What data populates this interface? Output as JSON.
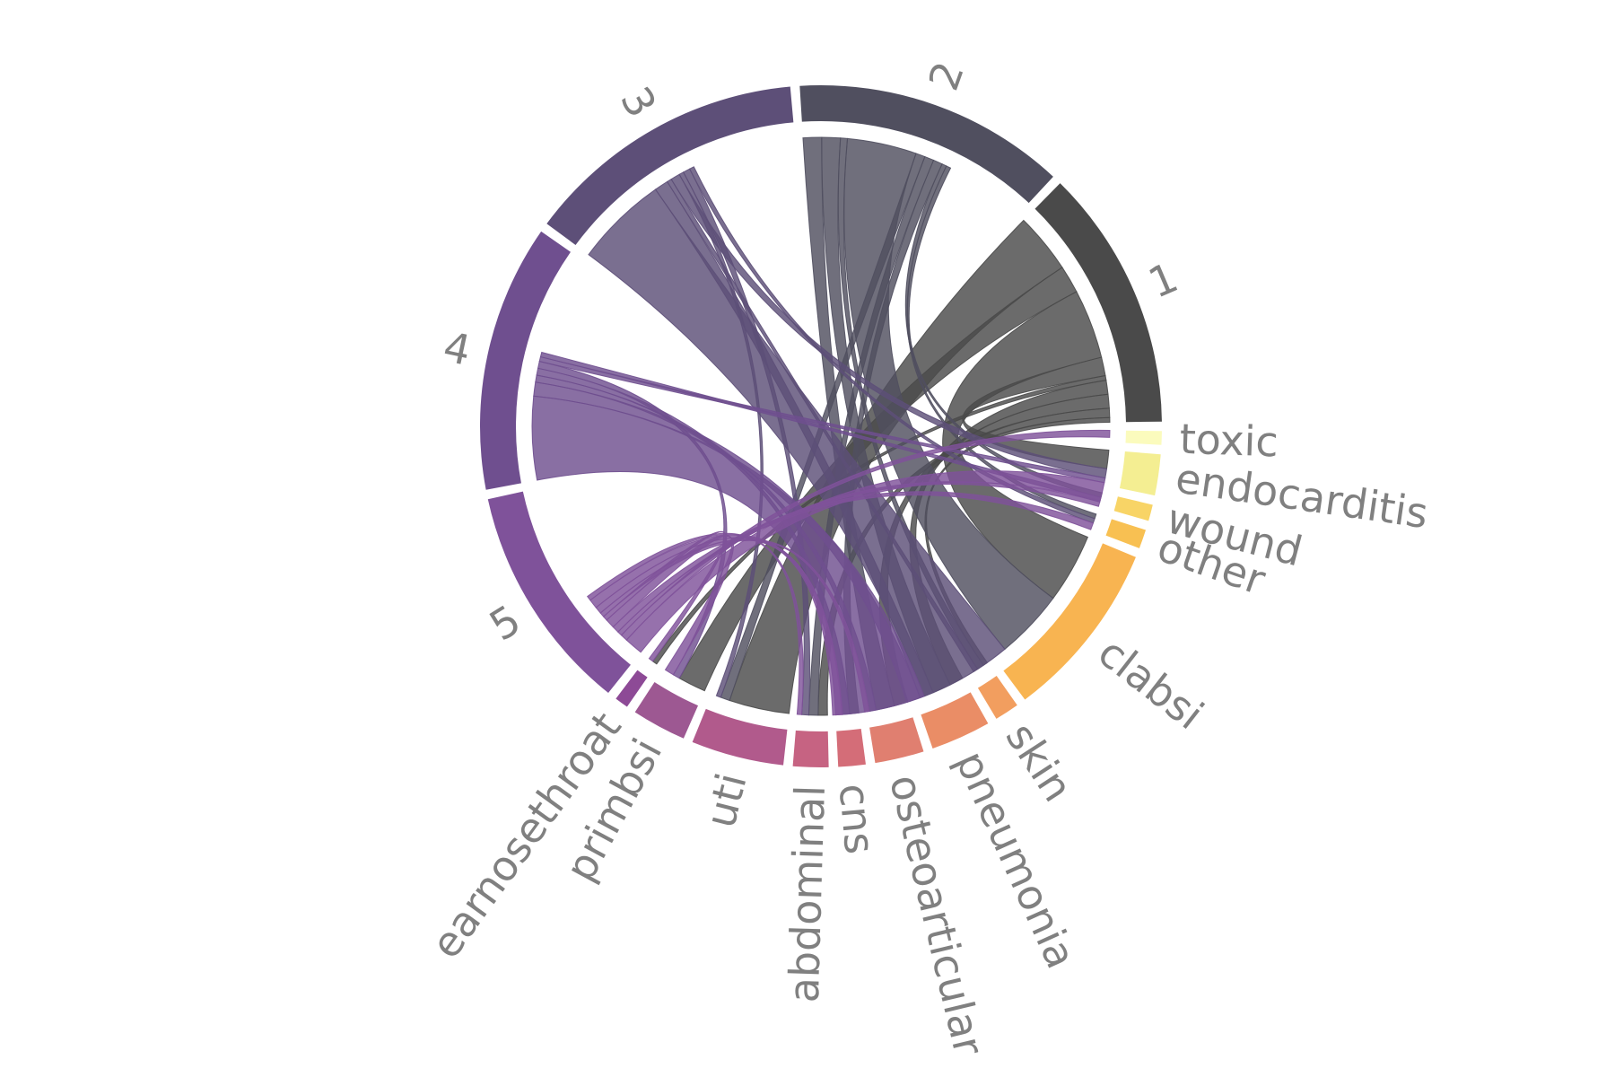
{
  "chart_data": {
    "type": "chord",
    "title": "",
    "groups": [
      {
        "name": "1",
        "value": 96,
        "color": "#4a4a4a"
      },
      {
        "name": "2",
        "value": 100,
        "color": "#504f5f"
      },
      {
        "name": "3",
        "value": 104,
        "color": "#5d4f78"
      },
      {
        "name": "4",
        "value": 98,
        "color": "#6f4f8f"
      },
      {
        "name": "5",
        "value": 84,
        "color": "#7f529a"
      },
      {
        "name": "earnosethroat",
        "value": 5,
        "color": "#8d4a96"
      },
      {
        "name": "primbsi",
        "value": 20,
        "color": "#9d5892"
      },
      {
        "name": "uti",
        "value": 34,
        "color": "#b15a8c"
      },
      {
        "name": "abdominal",
        "value": 13,
        "color": "#c66382"
      },
      {
        "name": "cns",
        "value": 10,
        "color": "#d46d78"
      },
      {
        "name": "osteoarticular",
        "value": 18,
        "color": "#e07f70"
      },
      {
        "name": "pneumonia",
        "value": 22,
        "color": "#ea8d66"
      },
      {
        "name": "skin",
        "value": 9,
        "color": "#f29e5f"
      },
      {
        "name": "clabsi",
        "value": 66,
        "color": "#f8b451"
      },
      {
        "name": "other",
        "value": 7,
        "color": "#f8c052"
      },
      {
        "name": "wound",
        "value": 6,
        "color": "#f8d466"
      },
      {
        "name": "endocarditis",
        "value": 15,
        "color": "#f4ee92"
      },
      {
        "name": "toxic",
        "value": 5,
        "color": "#fbfbbd"
      }
    ],
    "flows": [
      {
        "source": "1",
        "target": "uti",
        "value": 26
      },
      {
        "source": "1",
        "target": "primbsi",
        "value": 12
      },
      {
        "source": "1",
        "target": "clabsi",
        "value": 30
      },
      {
        "source": "1",
        "target": "endocarditis",
        "value": 8
      },
      {
        "source": "1",
        "target": "earnosethroat",
        "value": 2
      },
      {
        "source": "1",
        "target": "pneumonia",
        "value": 6
      },
      {
        "source": "1",
        "target": "osteoarticular",
        "value": 6
      },
      {
        "source": "1",
        "target": "abdominal",
        "value": 4
      },
      {
        "source": "1",
        "target": "skin",
        "value": 2
      },
      {
        "source": "2",
        "target": "osteoarticular",
        "value": 8
      },
      {
        "source": "2",
        "target": "pneumonia",
        "value": 8
      },
      {
        "source": "2",
        "target": "skin",
        "value": 3
      },
      {
        "source": "2",
        "target": "clabsi",
        "value": 30
      },
      {
        "source": "2",
        "target": "uti",
        "value": 4
      },
      {
        "source": "2",
        "target": "abdominal",
        "value": 4
      },
      {
        "source": "2",
        "target": "cns",
        "value": 4
      },
      {
        "source": "2",
        "target": "wound",
        "value": 2
      },
      {
        "source": "2",
        "target": "other",
        "value": 2
      },
      {
        "source": "3",
        "target": "clabsi",
        "value": 40
      },
      {
        "source": "3",
        "target": "pneumonia",
        "value": 6
      },
      {
        "source": "3",
        "target": "skin",
        "value": 2
      },
      {
        "source": "3",
        "target": "endocarditis",
        "value": 4
      },
      {
        "source": "3",
        "target": "uti",
        "value": 2
      },
      {
        "source": "3",
        "target": "abdominal",
        "value": 3
      },
      {
        "source": "3",
        "target": "other",
        "value": 2
      },
      {
        "source": "4",
        "target": "clabsi",
        "value": 36
      },
      {
        "source": "4",
        "target": "pneumonia",
        "value": 6
      },
      {
        "source": "4",
        "target": "osteoarticular",
        "value": 3
      },
      {
        "source": "4",
        "target": "cns",
        "value": 3
      },
      {
        "source": "4",
        "target": "primbsi",
        "value": 3
      },
      {
        "source": "4",
        "target": "endocarditis",
        "value": 2
      },
      {
        "source": "4",
        "target": "wound",
        "value": 2
      },
      {
        "source": "5",
        "target": "endocarditis",
        "value": 8
      },
      {
        "source": "5",
        "target": "toxic",
        "value": 3
      },
      {
        "source": "5",
        "target": "wound",
        "value": 2
      },
      {
        "source": "5",
        "target": "other",
        "value": 3
      },
      {
        "source": "5",
        "target": "primbsi",
        "value": 4
      },
      {
        "source": "5",
        "target": "earnosethroat",
        "value": 2
      },
      {
        "source": "5",
        "target": "osteoarticular",
        "value": 2
      },
      {
        "source": "5",
        "target": "cns",
        "value": 3
      },
      {
        "source": "5",
        "target": "clabsi",
        "value": 4
      },
      {
        "source": "5",
        "target": "abdominal",
        "value": 2
      }
    ]
  }
}
